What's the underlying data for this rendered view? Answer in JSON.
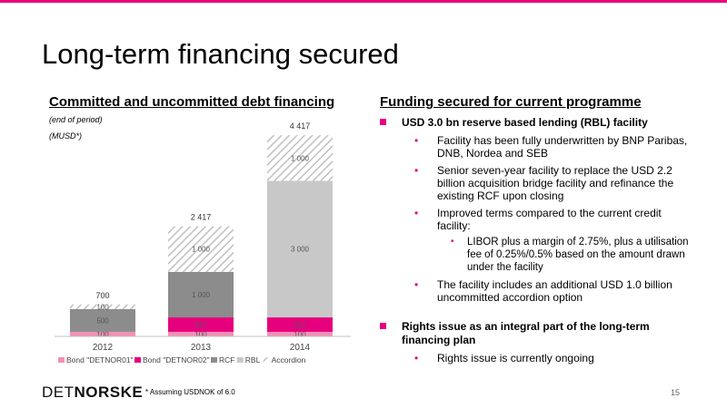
{
  "slide": {
    "title": "Long-term financing secured",
    "page_number": "15",
    "footnote": "* Assuming USDNOK of 6.0",
    "logo": {
      "part1": "DET",
      "part2": "NORSKE"
    },
    "accent_color": "#e6007e"
  },
  "left": {
    "title": "Committed and uncommitted debt financing",
    "note1": "(end of period)",
    "note2": "(MUSD*)"
  },
  "chart_data": {
    "type": "bar",
    "stacked": true,
    "categories": [
      "2012",
      "2013",
      "2014"
    ],
    "series": [
      {
        "name": "Bond \"DETNOR01\"",
        "color": "#f48fb6",
        "values": [
          100,
          100,
          100
        ],
        "labels": [
          "100",
          "100",
          "100"
        ]
      },
      {
        "name": "Bond \"DETNOR02\"",
        "color": "#e6007e",
        "values": [
          0,
          317,
          317
        ],
        "labels": [
          "",
          "317",
          "317"
        ]
      },
      {
        "name": "RCF",
        "color": "#8c8c8c",
        "values": [
          500,
          1000,
          0
        ],
        "labels": [
          "500",
          "1 000",
          ""
        ]
      },
      {
        "name": "RBL",
        "color": "#c8c8c8",
        "values": [
          0,
          0,
          3000
        ],
        "labels": [
          "",
          "",
          "3 000"
        ]
      },
      {
        "name": "Accordion",
        "color": "#bbbbbb",
        "pattern": "hatch",
        "values": [
          100,
          1000,
          1000
        ],
        "labels": [
          "100",
          "1 000",
          "1 000"
        ]
      }
    ],
    "totals": [
      "700",
      "2 417",
      "4 417"
    ],
    "ylim": [
      0,
      4500
    ],
    "grid": false,
    "legend_position": "bottom"
  },
  "right": {
    "title": "Funding secured for current programme",
    "items": [
      {
        "text": "USD 3.0 bn reserve based lending (RBL) facility",
        "subs": [
          {
            "text": "Facility has been fully underwritten by BNP Paribas, DNB, Nordea and SEB"
          },
          {
            "text": "Senior seven-year facility to replace the USD 2.2 billion acquisition bridge facility and refinance the existing RCF upon closing"
          },
          {
            "text": "Improved terms compared to the current credit facility:",
            "subs": [
              {
                "text": "LIBOR plus a margin of 2.75%, plus a utilisation fee of 0.25%/0.5% based on the amount drawn under the facility"
              }
            ]
          },
          {
            "text": "The facility includes an additional USD 1.0 billion uncommitted accordion option"
          }
        ]
      },
      {
        "text": "Rights issue as an integral part of the long-term financing plan",
        "subs": [
          {
            "text": "Rights issue is currently ongoing"
          }
        ]
      }
    ]
  }
}
